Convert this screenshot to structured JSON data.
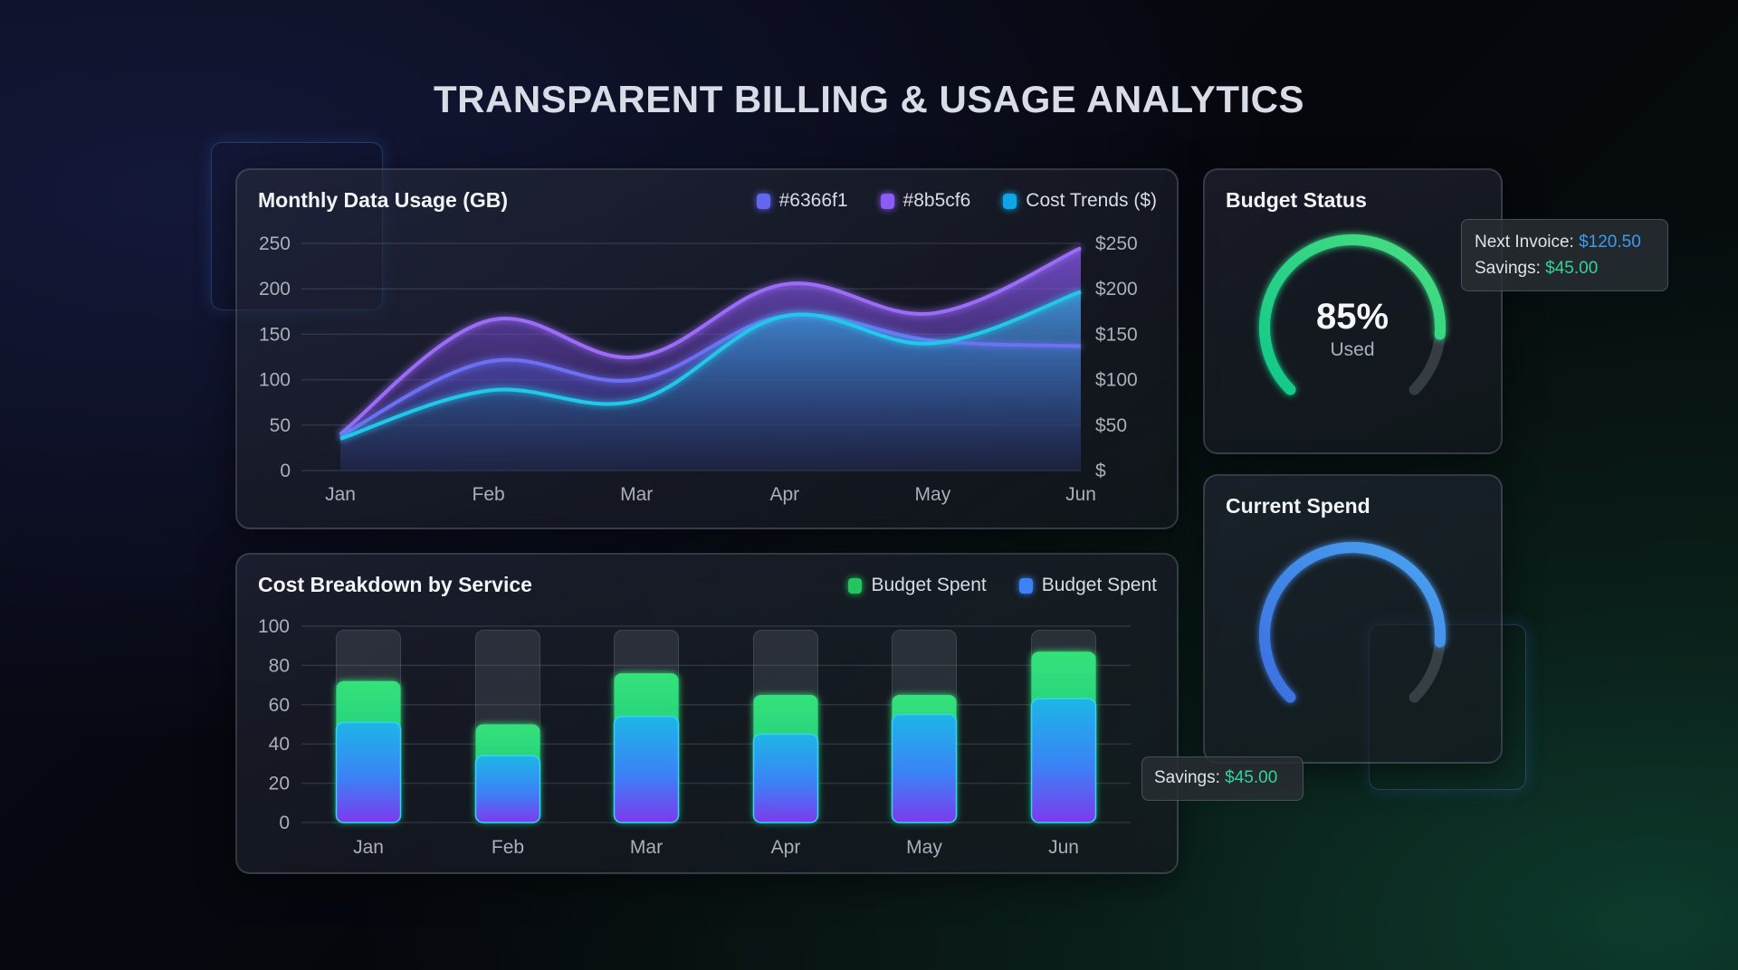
{
  "page_title": "TRANSPARENT BILLING & USAGE ANALYTICS",
  "usage_panel": {
    "title": "Monthly Data Usage (GB)",
    "legend": [
      {
        "label": "#6366f1",
        "color": "#6366f1"
      },
      {
        "label": "#8b5cf6",
        "color": "#8b5cf6"
      },
      {
        "label": "Cost Trends ($)",
        "color": "#0ea5e9"
      }
    ]
  },
  "cost_panel": {
    "title": "Cost Breakdown by Service",
    "legend": [
      {
        "label": "Budget Spent",
        "color": "#22c55e"
      },
      {
        "label": "Budget Spent",
        "color": "#3b82f6"
      }
    ]
  },
  "budget_status": {
    "title": "Budget Status",
    "percent_label": "85%",
    "percent": 85,
    "sub_label": "Used",
    "color": "#34d399"
  },
  "current_spend": {
    "title": "Current Spend",
    "level_percent": 85,
    "color": "#3b8fe8"
  },
  "invoice_tooltip": {
    "invoice_label": "Next Invoice:",
    "invoice_value": "$120.50",
    "savings_label": "Savings:",
    "savings_value": "$45.00"
  },
  "savings_tooltip": {
    "savings_label": "Savings:",
    "savings_value": "$45.00"
  },
  "chart_data": [
    {
      "type": "area",
      "title": "Monthly Data Usage (GB)",
      "categories": [
        "Jan",
        "Feb",
        "Mar",
        "Apr",
        "May",
        "Jun"
      ],
      "ylim": [
        0,
        250
      ],
      "yticks": [
        "0",
        "50",
        "100",
        "150",
        "200",
        "250"
      ],
      "y2ticks": [
        "$",
        "$50",
        "$100",
        "$150",
        "$200",
        "$250"
      ],
      "grid": true,
      "legend": "top-right",
      "series": [
        {
          "name": "#8b5cf6",
          "color": "#8b5cf6",
          "values": [
            40,
            165,
            125,
            205,
            173,
            245
          ]
        },
        {
          "name": "#6366f1",
          "color": "#6366f1",
          "values": [
            38,
            120,
            100,
            170,
            143,
            137
          ]
        },
        {
          "name": "Cost Trends ($)",
          "color": "#22d3ee",
          "values": [
            35,
            88,
            77,
            170,
            140,
            197
          ]
        }
      ]
    },
    {
      "type": "bar",
      "title": "Cost Breakdown by Service",
      "stacked": false,
      "categories": [
        "Jan",
        "Feb",
        "Mar",
        "Apr",
        "May",
        "Jun"
      ],
      "ylim": [
        0,
        100
      ],
      "yticks": [
        "0",
        "20",
        "40",
        "60",
        "80",
        "100"
      ],
      "grid": true,
      "legend": "top-right",
      "series": [
        {
          "name": "Budget Spent",
          "color": "#22c55e",
          "values": [
            72,
            50,
            76,
            65,
            65,
            87
          ]
        },
        {
          "name": "Budget Spent",
          "color": "#3b82f6",
          "values": [
            51,
            34,
            54,
            45,
            55,
            63
          ]
        }
      ]
    }
  ]
}
